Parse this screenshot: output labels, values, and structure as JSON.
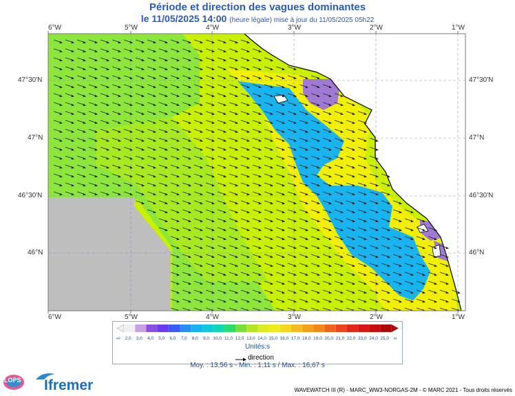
{
  "title": {
    "line1": "Période et direction des vagues dominantes",
    "line2_main": "le 11/05/2025 14:00",
    "line2_note": "(heure légale) mise à jour du 11/05/2025 05h22"
  },
  "axes": {
    "lon_labels": [
      "6°W",
      "5°W",
      "4°W",
      "3°W",
      "2°W",
      "1°W"
    ],
    "lat_labels": [
      "47°30'N",
      "47°N",
      "46°30'N",
      "46°N"
    ]
  },
  "legend": {
    "values": [
      "2,0",
      "3,0",
      "4,0",
      "5,0",
      "6,0",
      "7,0",
      "8,0",
      "9,0",
      "10,0",
      "11,0",
      "12,0",
      "13,0",
      "14,0",
      "15,0",
      "16,0",
      "17,0",
      "18,0",
      "19,0",
      "20,0",
      "21,0",
      "22,0",
      "23,0",
      "24,0",
      "25,0"
    ],
    "colors": [
      "#f0f0f0",
      "#c8a0e6",
      "#8a4fe0",
      "#6a3cf0",
      "#3c5af5",
      "#2a8cf5",
      "#18b4f0",
      "#10c8dc",
      "#10d8b4",
      "#2adc6e",
      "#78e03c",
      "#b4e628",
      "#dcec20",
      "#f0ec1c",
      "#f4d81c",
      "#f4bc1c",
      "#f4a01c",
      "#f4841c",
      "#f0641c",
      "#ec441c",
      "#e42818",
      "#dc1414",
      "#cc0c0c",
      "#b00808"
    ],
    "under_label": "-∞",
    "over_label": "∞",
    "unit_label": "Unités:s",
    "direction_label": "direction"
  },
  "stats": {
    "text": "Moy. : 13,56 s   -   Min. : 1,11 s / Max. : 16,67 s"
  },
  "footer": "WAVEWATCH III (R) - MARC_WW3-NORGAS-2M - © MARC 2021 - Tous droits réservés",
  "logos": {
    "lops": "LOPS",
    "ifremer": "Ifremer"
  },
  "map_colors": {
    "yellowgreen": "#c8f000",
    "green": "#8ce63c",
    "lime": "#b4ec14",
    "yellow": "#f0f000",
    "cyan": "#18b4f0",
    "purple": "#a07ad2",
    "land": "#ffffff",
    "nodata": "#bebebe"
  }
}
